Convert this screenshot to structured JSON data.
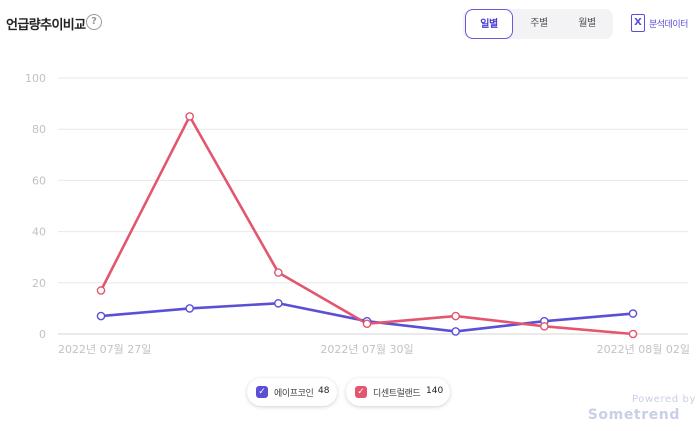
{
  "header": {
    "title": "언급량추이비교",
    "help_icon": "question-circle-icon",
    "tabs": [
      {
        "label": "일별",
        "active": true
      },
      {
        "label": "주별",
        "active": false
      },
      {
        "label": "월별",
        "active": false
      }
    ],
    "export_label": "분석데이터",
    "export_icon": "excel-icon"
  },
  "chart_data": {
    "type": "line",
    "x": [
      "2022-07-27",
      "2022-07-28",
      "2022-07-29",
      "2022-07-30",
      "2022-07-31",
      "2022-08-01",
      "2022-08-02"
    ],
    "x_tick_labels": [
      {
        "index": 0,
        "label": "2022년 07월 27일"
      },
      {
        "index": 3,
        "label": "2022년 07월 30일"
      },
      {
        "index": 6,
        "label": "2022년 08월 02일"
      }
    ],
    "y_ticks": [
      0,
      20,
      40,
      60,
      80,
      100
    ],
    "ylim": [
      0,
      100
    ],
    "grid": true,
    "series": [
      {
        "name": "에이프코인",
        "total": 48,
        "color": "#5b4fd6",
        "values": [
          7,
          10,
          12,
          5,
          1,
          5,
          8
        ]
      },
      {
        "name": "디센트럴랜드",
        "total": 140,
        "color": "#e2566e",
        "values": [
          17,
          85,
          24,
          4,
          7,
          3,
          0
        ]
      }
    ],
    "legend_placement": "bottom"
  },
  "footer": {
    "powered_by": "Powered by",
    "brand": "Sometrend"
  }
}
